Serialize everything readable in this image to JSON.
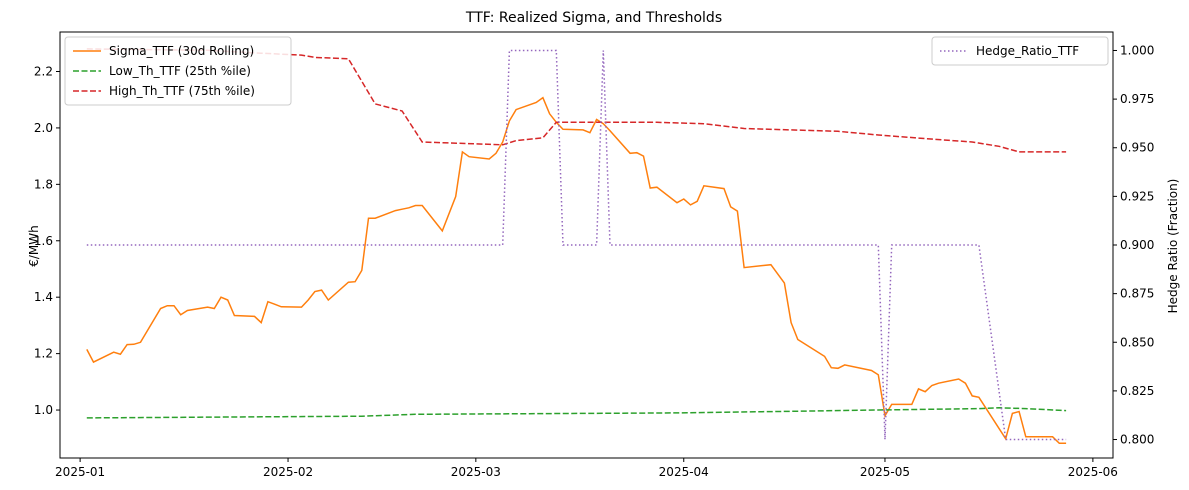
{
  "chart_data": {
    "type": "line",
    "title": "TTF: Realized Sigma, and Thresholds",
    "xlabel": "",
    "ylabel": "€/MWh",
    "y2label": "Hedge Ratio (Fraction)",
    "xlim": [
      "2024-12-29",
      "2025-06-04"
    ],
    "ylim": [
      0.83,
      2.34
    ],
    "y2lim": [
      0.7905,
      1.0095
    ],
    "x_ticks": [
      "2025-01-01",
      "2025-02-01",
      "2025-03-01",
      "2025-04-01",
      "2025-05-01",
      "2025-06-01"
    ],
    "x_tick_labels": [
      "2025-01",
      "2025-02",
      "2025-03",
      "2025-04",
      "2025-05",
      "2025-06"
    ],
    "y_ticks": [
      "1.0",
      "1.2",
      "1.4",
      "1.6",
      "1.8",
      "2.0",
      "2.2"
    ],
    "y2_ticks": [
      "0.800",
      "0.825",
      "0.850",
      "0.875",
      "0.900",
      "0.925",
      "0.950",
      "0.975",
      "1.000"
    ],
    "grid": false,
    "legends": [
      {
        "placement": "top-left",
        "entries": [
          "Sigma_TTF (30d Rolling)",
          "Low_Th_TTF (25th %ile)",
          "High_Th_TTF (75th %ile)"
        ]
      },
      {
        "placement": "top-right",
        "entries": [
          "Hedge_Ratio_TTF"
        ]
      }
    ],
    "series": [
      {
        "name": "Sigma_TTF (30d Rolling)",
        "axis": "left",
        "color": "#ff7f0e",
        "style": "solid",
        "points": [
          [
            "2025-01-02",
            1.215
          ],
          [
            "2025-01-03",
            1.17
          ],
          [
            "2025-01-06",
            1.205
          ],
          [
            "2025-01-07",
            1.198
          ],
          [
            "2025-01-08",
            1.232
          ],
          [
            "2025-01-09",
            1.233
          ],
          [
            "2025-01-10",
            1.24
          ],
          [
            "2025-01-13",
            1.36
          ],
          [
            "2025-01-14",
            1.37
          ],
          [
            "2025-01-15",
            1.37
          ],
          [
            "2025-01-16",
            1.338
          ],
          [
            "2025-01-17",
            1.353
          ],
          [
            "2025-01-20",
            1.365
          ],
          [
            "2025-01-21",
            1.36
          ],
          [
            "2025-01-22",
            1.4
          ],
          [
            "2025-01-23",
            1.39
          ],
          [
            "2025-01-24",
            1.335
          ],
          [
            "2025-01-27",
            1.332
          ],
          [
            "2025-01-28",
            1.31
          ],
          [
            "2025-01-29",
            1.384
          ],
          [
            "2025-01-30",
            1.375
          ],
          [
            "2025-01-31",
            1.366
          ],
          [
            "2025-02-03",
            1.365
          ],
          [
            "2025-02-04",
            1.39
          ],
          [
            "2025-02-05",
            1.42
          ],
          [
            "2025-02-06",
            1.425
          ],
          [
            "2025-02-07",
            1.39
          ],
          [
            "2025-02-10",
            1.453
          ],
          [
            "2025-02-11",
            1.455
          ],
          [
            "2025-02-12",
            1.495
          ],
          [
            "2025-02-13",
            1.68
          ],
          [
            "2025-02-14",
            1.68
          ],
          [
            "2025-02-17",
            1.707
          ],
          [
            "2025-02-18",
            1.712
          ],
          [
            "2025-02-19",
            1.717
          ],
          [
            "2025-02-20",
            1.725
          ],
          [
            "2025-02-21",
            1.725
          ],
          [
            "2025-02-24",
            1.635
          ],
          [
            "2025-02-26",
            1.757
          ],
          [
            "2025-02-27",
            1.915
          ],
          [
            "2025-02-28",
            1.898
          ],
          [
            "2025-03-03",
            1.89
          ],
          [
            "2025-03-04",
            1.91
          ],
          [
            "2025-03-05",
            1.95
          ],
          [
            "2025-03-06",
            2.025
          ],
          [
            "2025-03-07",
            2.065
          ],
          [
            "2025-03-10",
            2.09
          ],
          [
            "2025-03-11",
            2.107
          ],
          [
            "2025-03-12",
            2.05
          ],
          [
            "2025-03-13",
            2.02
          ],
          [
            "2025-03-14",
            1.995
          ],
          [
            "2025-03-17",
            1.993
          ],
          [
            "2025-03-18",
            1.983
          ],
          [
            "2025-03-19",
            2.03
          ],
          [
            "2025-03-20",
            2.015
          ],
          [
            "2025-03-21",
            1.99
          ],
          [
            "2025-03-24",
            1.91
          ],
          [
            "2025-03-25",
            1.912
          ],
          [
            "2025-03-26",
            1.9
          ],
          [
            "2025-03-27",
            1.787
          ],
          [
            "2025-03-28",
            1.79
          ],
          [
            "2025-03-31",
            1.735
          ],
          [
            "2025-04-01",
            1.748
          ],
          [
            "2025-04-02",
            1.727
          ],
          [
            "2025-04-03",
            1.74
          ],
          [
            "2025-04-04",
            1.795
          ],
          [
            "2025-04-07",
            1.785
          ],
          [
            "2025-04-08",
            1.72
          ],
          [
            "2025-04-09",
            1.705
          ],
          [
            "2025-04-10",
            1.505
          ],
          [
            "2025-04-14",
            1.515
          ],
          [
            "2025-04-16",
            1.45
          ],
          [
            "2025-04-17",
            1.31
          ],
          [
            "2025-04-18",
            1.25
          ],
          [
            "2025-04-22",
            1.19
          ],
          [
            "2025-04-23",
            1.15
          ],
          [
            "2025-04-24",
            1.148
          ],
          [
            "2025-04-25",
            1.16
          ],
          [
            "2025-04-29",
            1.14
          ],
          [
            "2025-04-30",
            1.125
          ],
          [
            "2025-05-01",
            0.98
          ],
          [
            "2025-05-02",
            1.02
          ],
          [
            "2025-05-05",
            1.02
          ],
          [
            "2025-05-06",
            1.075
          ],
          [
            "2025-05-07",
            1.065
          ],
          [
            "2025-05-08",
            1.087
          ],
          [
            "2025-05-09",
            1.095
          ],
          [
            "2025-05-12",
            1.11
          ],
          [
            "2025-05-13",
            1.095
          ],
          [
            "2025-05-14",
            1.05
          ],
          [
            "2025-05-15",
            1.045
          ],
          [
            "2025-05-19",
            0.898
          ],
          [
            "2025-05-20",
            0.988
          ],
          [
            "2025-05-21",
            0.995
          ],
          [
            "2025-05-22",
            0.905
          ],
          [
            "2025-05-26",
            0.905
          ],
          [
            "2025-05-27",
            0.882
          ],
          [
            "2025-05-28",
            0.882
          ]
        ]
      },
      {
        "name": "Low_Th_TTF (25th %ile)",
        "axis": "left",
        "color": "#2ca02c",
        "style": "dashed",
        "points": [
          [
            "2025-01-02",
            0.972
          ],
          [
            "2025-02-12",
            0.978
          ],
          [
            "2025-02-20",
            0.985
          ],
          [
            "2025-03-31",
            0.99
          ],
          [
            "2025-04-15",
            0.995
          ],
          [
            "2025-04-30",
            1.0
          ],
          [
            "2025-05-15",
            1.005
          ],
          [
            "2025-05-18",
            1.008
          ],
          [
            "2025-05-22",
            1.005
          ],
          [
            "2025-05-28",
            0.998
          ]
        ]
      },
      {
        "name": "High_Th_TTF (75th %ile)",
        "axis": "left",
        "color": "#d62728",
        "style": "dashed",
        "points": [
          [
            "2025-01-02",
            2.28
          ],
          [
            "2025-01-20",
            2.275
          ],
          [
            "2025-01-28",
            2.265
          ],
          [
            "2025-02-03",
            2.258
          ],
          [
            "2025-02-05",
            2.25
          ],
          [
            "2025-02-10",
            2.245
          ],
          [
            "2025-02-14",
            2.085
          ],
          [
            "2025-02-18",
            2.06
          ],
          [
            "2025-02-21",
            1.95
          ],
          [
            "2025-02-27",
            1.945
          ],
          [
            "2025-03-05",
            1.94
          ],
          [
            "2025-03-07",
            1.955
          ],
          [
            "2025-03-11",
            1.965
          ],
          [
            "2025-03-13",
            2.02
          ],
          [
            "2025-03-28",
            2.02
          ],
          [
            "2025-04-04",
            2.015
          ],
          [
            "2025-04-10",
            1.998
          ],
          [
            "2025-04-24",
            1.988
          ],
          [
            "2025-04-30",
            1.975
          ],
          [
            "2025-05-07",
            1.962
          ],
          [
            "2025-05-14",
            1.95
          ],
          [
            "2025-05-18",
            1.935
          ],
          [
            "2025-05-21",
            1.915
          ],
          [
            "2025-05-28",
            1.915
          ]
        ]
      },
      {
        "name": "Hedge_Ratio_TTF",
        "axis": "right",
        "color": "#9467bd",
        "style": "dotted",
        "points": [
          [
            "2025-01-02",
            0.9
          ],
          [
            "2025-03-05",
            0.9
          ],
          [
            "2025-03-06",
            1.0
          ],
          [
            "2025-03-13",
            1.0
          ],
          [
            "2025-03-14",
            0.9
          ],
          [
            "2025-03-19",
            0.9
          ],
          [
            "2025-03-20",
            1.0
          ],
          [
            "2025-03-21",
            0.9
          ],
          [
            "2025-04-30",
            0.9
          ],
          [
            "2025-05-01",
            0.8
          ],
          [
            "2025-05-02",
            0.9
          ],
          [
            "2025-05-15",
            0.9
          ],
          [
            "2025-05-19",
            0.8
          ],
          [
            "2025-05-28",
            0.8
          ]
        ]
      }
    ]
  }
}
